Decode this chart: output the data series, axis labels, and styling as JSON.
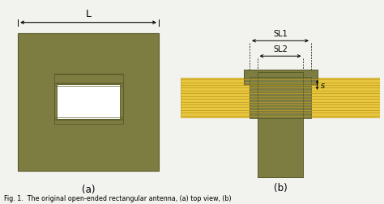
{
  "bg_color": "#f2f2ee",
  "olive_color": "#7d7d42",
  "olive_edge": "#5a5a28",
  "yellow_fill": "#e8c840",
  "yellow_line": "#c8a020",
  "white": "#ffffff",
  "caption": "Fig. 1.  The original open-ended rectangular antenna, (a) top view, (b)",
  "label_a": "(a)",
  "label_b": "(b)",
  "dim_L": "L",
  "dim_SL1": "SL1",
  "dim_SL2": "SL2",
  "dim_s": "s"
}
